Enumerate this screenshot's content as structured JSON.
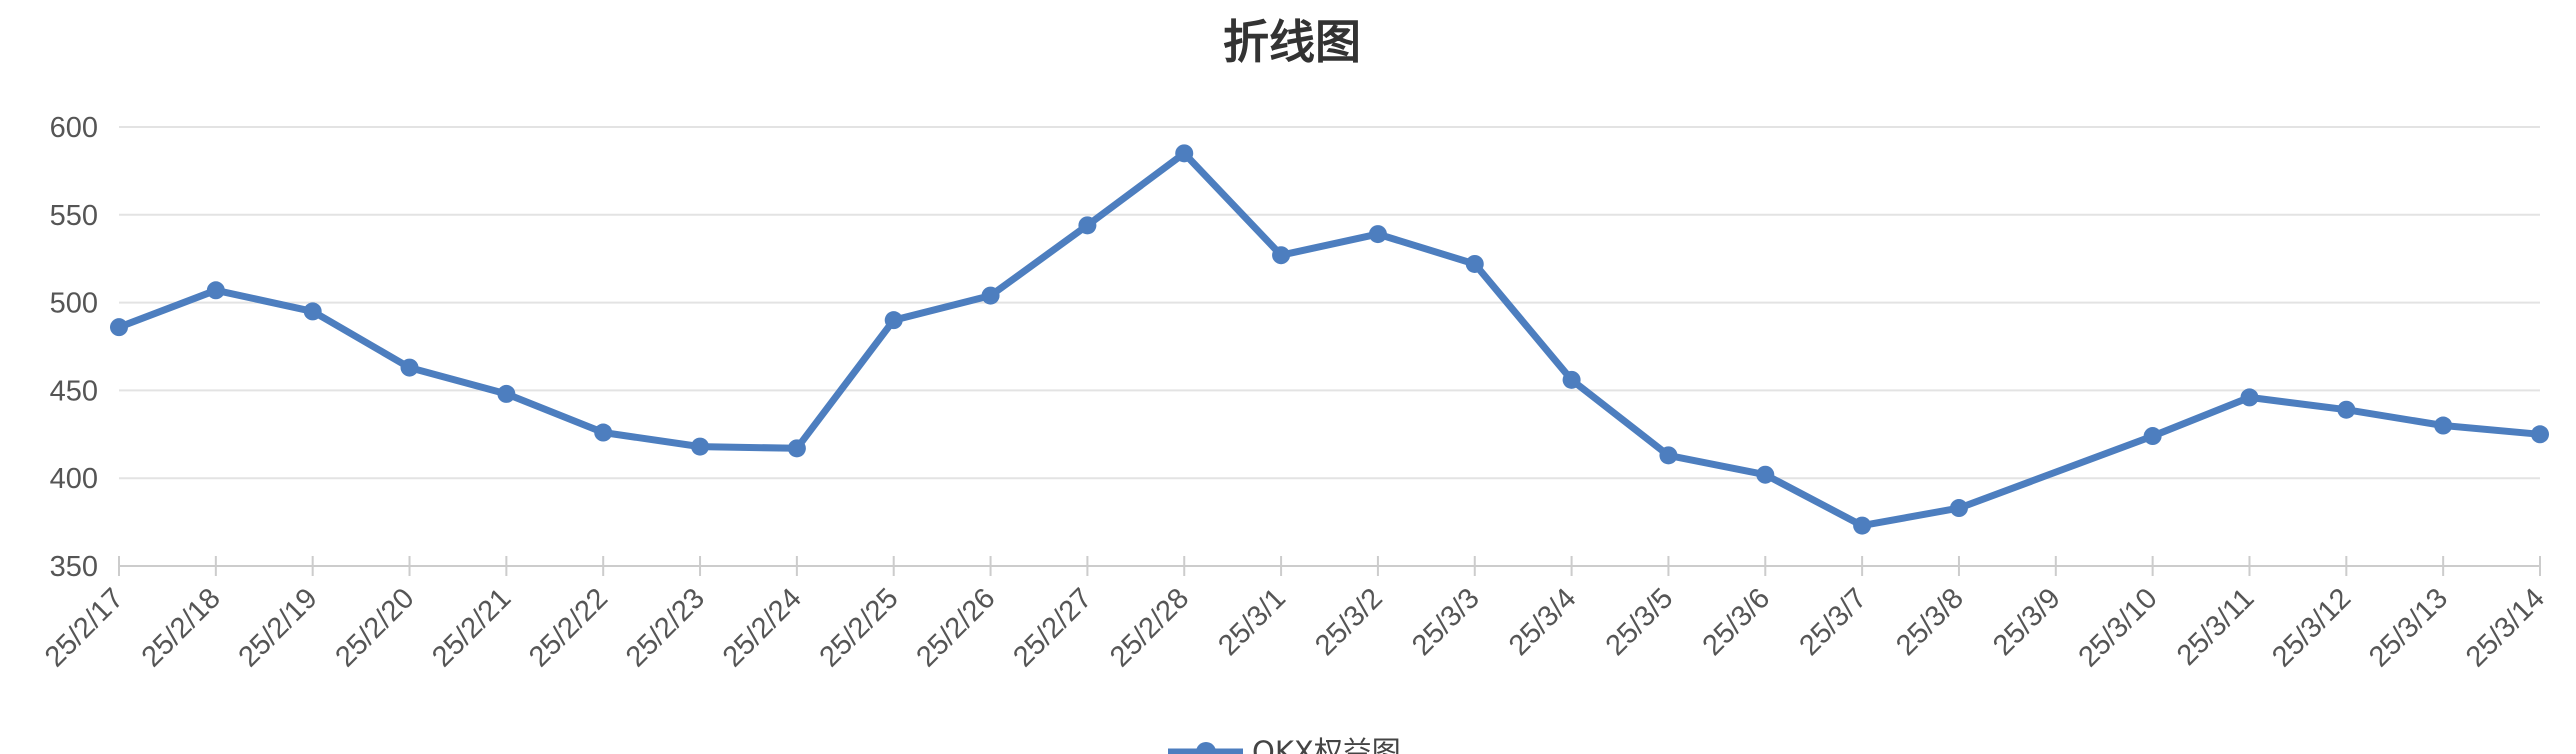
{
  "chart_data": {
    "type": "line",
    "title": "折线图",
    "xlabel": "",
    "ylabel": "",
    "categories": [
      "25/2/17",
      "25/2/18",
      "25/2/19",
      "25/2/20",
      "25/2/21",
      "25/2/22",
      "25/2/23",
      "25/2/24",
      "25/2/25",
      "25/2/26",
      "25/2/27",
      "25/2/28",
      "25/3/1",
      "25/3/2",
      "25/3/3",
      "25/3/4",
      "25/3/5",
      "25/3/6",
      "25/3/7",
      "25/3/8",
      "25/3/9",
      "25/3/10",
      "25/3/11",
      "25/3/12",
      "25/3/13",
      "25/3/14"
    ],
    "series": [
      {
        "name": "OKX权益图",
        "color": "#4d7ebf",
        "values": [
          486,
          507,
          495,
          463,
          448,
          426,
          418,
          417,
          490,
          504,
          544,
          585,
          527,
          539,
          522,
          456,
          413,
          402,
          373,
          383,
          null,
          424,
          446,
          439,
          430,
          425
        ]
      }
    ],
    "ylim": [
      350,
      600
    ],
    "yticks": [
      350,
      400,
      450,
      500,
      550,
      600
    ],
    "grid": true,
    "legend": "bottom-center"
  }
}
